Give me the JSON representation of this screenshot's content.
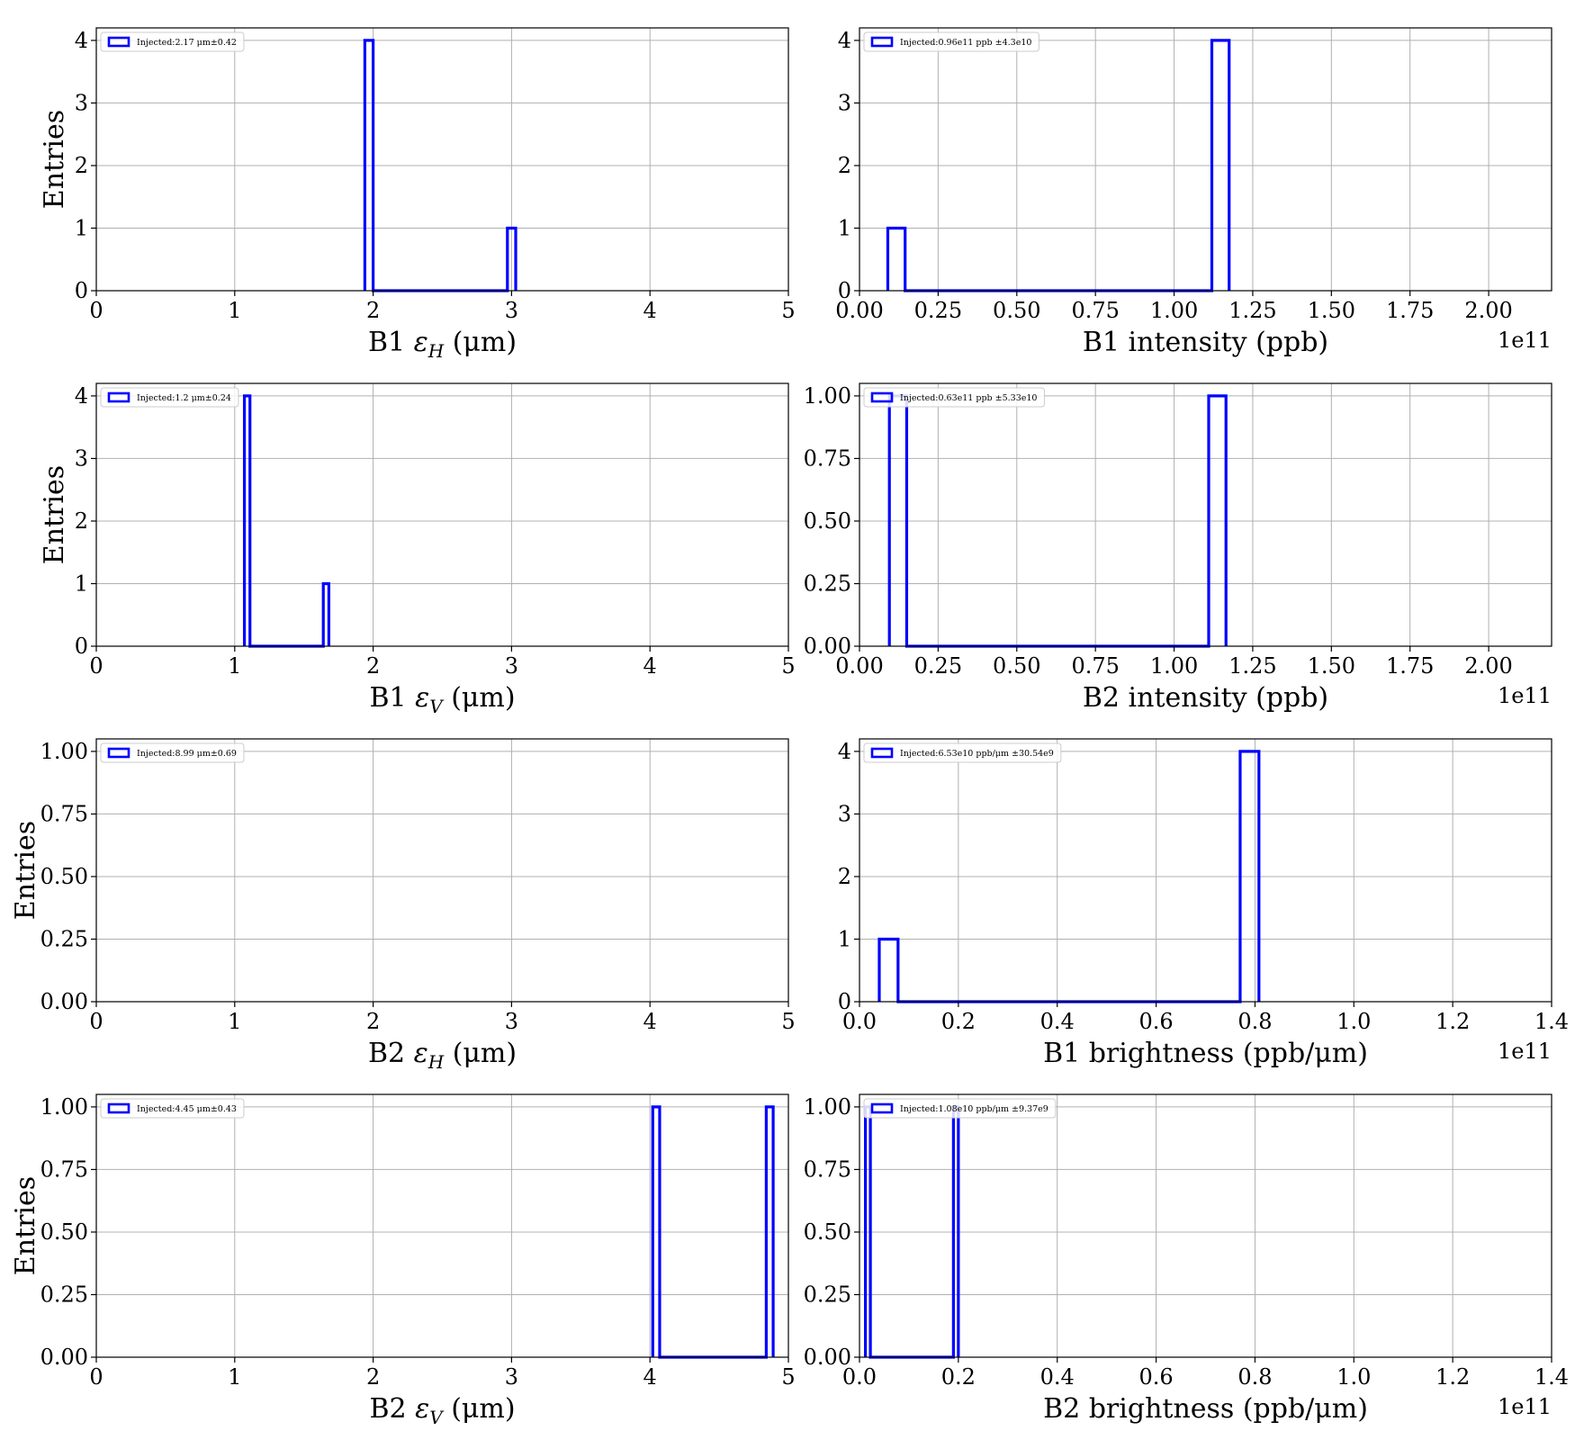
{
  "figure": {
    "layout": "4x2 grid of histograms"
  },
  "chart_data": [
    {
      "type": "bar",
      "panel": "b1-eh",
      "xlabel": "B1 εH (μm)",
      "xlabel_parts": {
        "prefix": "B1 ",
        "symbol": "ε",
        "sub": "H",
        "suffix": " (μm)"
      },
      "ylabel": "Entries",
      "legend": "Injected:2.17 μm±0.42",
      "xlim": [
        0,
        5
      ],
      "ylim": [
        0,
        4.2
      ],
      "xticks": [
        0,
        1,
        2,
        3,
        4,
        5
      ],
      "xticklabels": [
        "0",
        "1",
        "2",
        "3",
        "4",
        "5"
      ],
      "yticks": [
        0,
        1,
        2,
        3,
        4
      ],
      "yticklabels": [
        "0",
        "1",
        "2",
        "3",
        "4"
      ],
      "multiplier": "",
      "bins": [
        {
          "left": 1.94,
          "right": 2.0,
          "count": 4
        },
        {
          "left": 2.0,
          "right": 2.97,
          "count": 0
        },
        {
          "left": 2.97,
          "right": 3.03,
          "count": 1
        }
      ]
    },
    {
      "type": "bar",
      "panel": "b1-intensity",
      "xlabel": "B1 intensity (ppb)",
      "ylabel": "",
      "legend": "Injected:0.96e11 ppb ±4.3e10",
      "xlim": [
        0,
        2.2
      ],
      "ylim": [
        0,
        4.2
      ],
      "xticks": [
        0,
        0.25,
        0.5,
        0.75,
        1.0,
        1.25,
        1.5,
        1.75,
        2.0
      ],
      "xticklabels": [
        "0.00",
        "0.25",
        "0.50",
        "0.75",
        "1.00",
        "1.25",
        "1.50",
        "1.75",
        "2.00"
      ],
      "yticks": [
        0,
        1,
        2,
        3,
        4
      ],
      "yticklabels": [
        "0",
        "1",
        "2",
        "3",
        "4"
      ],
      "multiplier": "1e11",
      "bins": [
        {
          "left": 0.09,
          "right": 0.145,
          "count": 1
        },
        {
          "left": 0.145,
          "right": 1.12,
          "count": 0
        },
        {
          "left": 1.12,
          "right": 1.175,
          "count": 4
        }
      ]
    },
    {
      "type": "bar",
      "panel": "b1-ev",
      "xlabel": "B1 εV (μm)",
      "xlabel_parts": {
        "prefix": "B1 ",
        "symbol": "ε",
        "sub": "V",
        "suffix": " (μm)"
      },
      "ylabel": "Entries",
      "legend": "Injected:1.2 μm±0.24",
      "xlim": [
        0,
        5
      ],
      "ylim": [
        0,
        4.2
      ],
      "xticks": [
        0,
        1,
        2,
        3,
        4,
        5
      ],
      "xticklabels": [
        "0",
        "1",
        "2",
        "3",
        "4",
        "5"
      ],
      "yticks": [
        0,
        1,
        2,
        3,
        4
      ],
      "yticklabels": [
        "0",
        "1",
        "2",
        "3",
        "4"
      ],
      "multiplier": "",
      "bins": [
        {
          "left": 1.07,
          "right": 1.11,
          "count": 4
        },
        {
          "left": 1.11,
          "right": 1.64,
          "count": 0
        },
        {
          "left": 1.64,
          "right": 1.68,
          "count": 1
        }
      ]
    },
    {
      "type": "bar",
      "panel": "b2-intensity",
      "xlabel": "B2 intensity (ppb)",
      "ylabel": "",
      "legend": "Injected:0.63e11 ppb ±5.33e10",
      "xlim": [
        0,
        2.2
      ],
      "ylim": [
        0,
        1.05
      ],
      "xticks": [
        0,
        0.25,
        0.5,
        0.75,
        1.0,
        1.25,
        1.5,
        1.75,
        2.0
      ],
      "xticklabels": [
        "0.00",
        "0.25",
        "0.50",
        "0.75",
        "1.00",
        "1.25",
        "1.50",
        "1.75",
        "2.00"
      ],
      "yticks": [
        0,
        0.25,
        0.5,
        0.75,
        1.0
      ],
      "yticklabels": [
        "0.00",
        "0.25",
        "0.50",
        "0.75",
        "1.00"
      ],
      "multiplier": "1e11",
      "bins": [
        {
          "left": 0.095,
          "right": 0.15,
          "count": 1
        },
        {
          "left": 0.15,
          "right": 1.11,
          "count": 0
        },
        {
          "left": 1.11,
          "right": 1.165,
          "count": 1
        }
      ]
    },
    {
      "type": "bar",
      "panel": "b2-eh",
      "xlabel": "B2 εH (μm)",
      "xlabel_parts": {
        "prefix": "B2 ",
        "symbol": "ε",
        "sub": "H",
        "suffix": " (μm)"
      },
      "ylabel": "Entries",
      "legend": "Injected:8.99 μm±0.69",
      "xlim": [
        0,
        5
      ],
      "ylim": [
        0,
        1.05
      ],
      "xticks": [
        0,
        1,
        2,
        3,
        4,
        5
      ],
      "xticklabels": [
        "0",
        "1",
        "2",
        "3",
        "4",
        "5"
      ],
      "yticks": [
        0,
        0.25,
        0.5,
        0.75,
        1.0
      ],
      "yticklabels": [
        "0.00",
        "0.25",
        "0.50",
        "0.75",
        "1.00"
      ],
      "multiplier": "",
      "bins": []
    },
    {
      "type": "bar",
      "panel": "b1-brightness",
      "xlabel": "B1 brightness (ppb/μm)",
      "ylabel": "",
      "legend": "Injected:6.53e10 ppb/μm ±30.54e9",
      "xlim": [
        0,
        1.4
      ],
      "ylim": [
        0,
        4.2
      ],
      "xticks": [
        0,
        0.2,
        0.4,
        0.6,
        0.8,
        1.0,
        1.2,
        1.4
      ],
      "xticklabels": [
        "0.0",
        "0.2",
        "0.4",
        "0.6",
        "0.8",
        "1.0",
        "1.2",
        "1.4"
      ],
      "yticks": [
        0,
        1,
        2,
        3,
        4
      ],
      "yticklabels": [
        "0",
        "1",
        "2",
        "3",
        "4"
      ],
      "multiplier": "1e11",
      "bins": [
        {
          "left": 0.04,
          "right": 0.078,
          "count": 1
        },
        {
          "left": 0.078,
          "right": 0.77,
          "count": 0
        },
        {
          "left": 0.77,
          "right": 0.808,
          "count": 4
        }
      ]
    },
    {
      "type": "bar",
      "panel": "b2-ev",
      "xlabel": "B2 εV (μm)",
      "xlabel_parts": {
        "prefix": "B2 ",
        "symbol": "ε",
        "sub": "V",
        "suffix": " (μm)"
      },
      "ylabel": "Entries",
      "legend": "Injected:4.45 μm±0.43",
      "xlim": [
        0,
        5
      ],
      "ylim": [
        0,
        1.05
      ],
      "xticks": [
        0,
        1,
        2,
        3,
        4,
        5
      ],
      "xticklabels": [
        "0",
        "1",
        "2",
        "3",
        "4",
        "5"
      ],
      "yticks": [
        0,
        0.25,
        0.5,
        0.75,
        1.0
      ],
      "yticklabels": [
        "0.00",
        "0.25",
        "0.50",
        "0.75",
        "1.00"
      ],
      "multiplier": "",
      "bins": [
        {
          "left": 4.02,
          "right": 4.07,
          "count": 1
        },
        {
          "left": 4.07,
          "right": 4.84,
          "count": 0
        },
        {
          "left": 4.84,
          "right": 4.89,
          "count": 1
        }
      ]
    },
    {
      "type": "bar",
      "panel": "b2-brightness",
      "xlabel": "B2 brightness (ppb/μm)",
      "ylabel": "",
      "legend": "Injected:1.08e10 ppb/μm ±9.37e9",
      "xlim": [
        0,
        1.4
      ],
      "ylim": [
        0,
        1.05
      ],
      "xticks": [
        0,
        0.2,
        0.4,
        0.6,
        0.8,
        1.0,
        1.2,
        1.4
      ],
      "xticklabels": [
        "0.0",
        "0.2",
        "0.4",
        "0.6",
        "0.8",
        "1.0",
        "1.2",
        "1.4"
      ],
      "yticks": [
        0,
        0.25,
        0.5,
        0.75,
        1.0
      ],
      "yticklabels": [
        "0.00",
        "0.25",
        "0.50",
        "0.75",
        "1.00"
      ],
      "multiplier": "1e11",
      "bins": [
        {
          "left": 0.012,
          "right": 0.022,
          "count": 1
        },
        {
          "left": 0.022,
          "right": 0.19,
          "count": 0
        },
        {
          "left": 0.19,
          "right": 0.2,
          "count": 1
        }
      ]
    }
  ],
  "style": {
    "bar_color": "#0000ff",
    "grid_color": "#b0b0b0",
    "axis_color": "#000000",
    "legend_border": "#cccccc"
  }
}
